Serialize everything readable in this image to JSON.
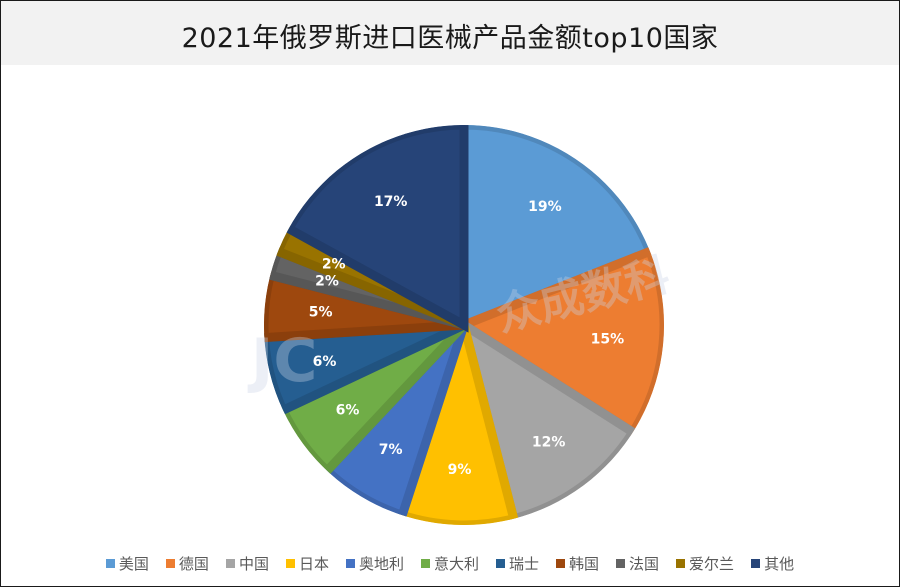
{
  "title": "2021年俄罗斯进口医械产品金额top10国家",
  "watermark": {
    "text": "众成数科",
    "logo_text": "JC"
  },
  "chart_data": {
    "type": "pie",
    "title": "2021年俄罗斯进口医械产品金额top10国家",
    "start_angle_deg": 0,
    "direction": "clockwise",
    "legend_position": "bottom",
    "value_unit": "%",
    "categories": [
      "美国",
      "德国",
      "中国",
      "日本",
      "奥地利",
      "意大利",
      "瑞士",
      "韩国",
      "法国",
      "爱尔兰",
      "其他"
    ],
    "values": [
      19,
      15,
      12,
      9,
      7,
      6,
      6,
      5,
      2,
      2,
      17
    ],
    "labels": [
      "19%",
      "15%",
      "12%",
      "9%",
      "7%",
      "6%",
      "6%",
      "5%",
      "2%",
      "2%",
      "17%"
    ],
    "colors": [
      "#5b9bd5",
      "#ed7d31",
      "#a5a5a5",
      "#ffc000",
      "#4472c4",
      "#70ad47",
      "#255e91",
      "#9e480e",
      "#636363",
      "#997300",
      "#264478"
    ]
  },
  "legend": {
    "items": [
      {
        "label": "美国",
        "color": "#5b9bd5"
      },
      {
        "label": "德国",
        "color": "#ed7d31"
      },
      {
        "label": "中国",
        "color": "#a5a5a5"
      },
      {
        "label": "日本",
        "color": "#ffc000"
      },
      {
        "label": "奥地利",
        "color": "#4472c4"
      },
      {
        "label": "意大利",
        "color": "#70ad47"
      },
      {
        "label": "瑞士",
        "color": "#255e91"
      },
      {
        "label": "韩国",
        "color": "#9e480e"
      },
      {
        "label": "法国",
        "color": "#636363"
      },
      {
        "label": "爱尔兰",
        "color": "#997300"
      },
      {
        "label": "其他",
        "color": "#264478"
      }
    ]
  }
}
